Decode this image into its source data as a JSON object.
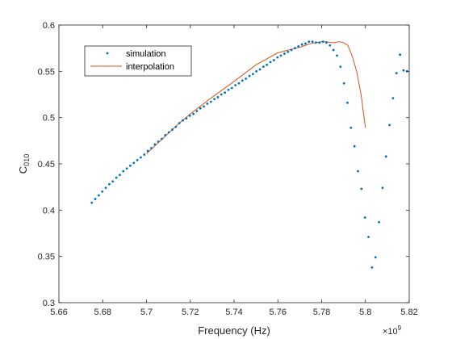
{
  "chart_data": {
    "type": "scatter",
    "xlabel": "Frequency (Hz)",
    "ylabel": "C010",
    "ylabel_main": "C",
    "ylabel_sub": "010",
    "x_exponent_label": "×10",
    "x_exponent_power": "9",
    "xlim": [
      5.66,
      5.82
    ],
    "ylim": [
      0.3,
      0.6
    ],
    "xticks": [
      5.66,
      5.68,
      5.7,
      5.72,
      5.74,
      5.76,
      5.78,
      5.8,
      5.82
    ],
    "xtick_labels": [
      "5.66",
      "5.68",
      "5.7",
      "5.72",
      "5.74",
      "5.76",
      "5.78",
      "5.8",
      "5.82"
    ],
    "yticks": [
      0.3,
      0.35,
      0.4,
      0.45,
      0.5,
      0.55,
      0.6
    ],
    "ytick_labels": [
      "0.3",
      "0.35",
      "0.4",
      "0.45",
      "0.5",
      "0.55",
      "0.6"
    ],
    "grid": false,
    "legend_position": "top-left",
    "legend": [
      {
        "label": "simulation",
        "style": "marker",
        "color": "#0072BD"
      },
      {
        "label": "interpolation",
        "style": "line",
        "color": "#D95319"
      }
    ],
    "series": [
      {
        "name": "simulation",
        "color": "#0072BD",
        "x": [
          5.675,
          5.6766,
          5.6782,
          5.6798,
          5.6814,
          5.683,
          5.6846,
          5.6862,
          5.6878,
          5.6894,
          5.691,
          5.6926,
          5.6942,
          5.6958,
          5.6974,
          5.699,
          5.7006,
          5.7022,
          5.7038,
          5.7054,
          5.707,
          5.7086,
          5.7102,
          5.7118,
          5.7134,
          5.715,
          5.7166,
          5.7182,
          5.7198,
          5.7214,
          5.723,
          5.7246,
          5.7262,
          5.7278,
          5.7294,
          5.731,
          5.7326,
          5.7342,
          5.7358,
          5.7374,
          5.739,
          5.7406,
          5.7422,
          5.7438,
          5.7454,
          5.747,
          5.7486,
          5.7502,
          5.7518,
          5.7534,
          5.755,
          5.7566,
          5.7582,
          5.7598,
          5.7614,
          5.763,
          5.7646,
          5.7662,
          5.7678,
          5.7694,
          5.771,
          5.7726,
          5.7742,
          5.7758,
          5.7774,
          5.779,
          5.7806,
          5.7822,
          5.7838,
          5.7854,
          5.787,
          5.7886,
          5.7902,
          5.7918,
          5.7934,
          5.795,
          5.7966,
          5.7982,
          5.7998,
          5.8014,
          5.803,
          5.8046,
          5.8062,
          5.8078,
          5.8094,
          5.811,
          5.8126,
          5.8142,
          5.8158,
          5.8174,
          5.819,
          5.8206,
          5.8222
        ],
        "y": [
          0.408,
          0.412,
          0.416,
          0.42,
          0.424,
          0.428,
          0.431,
          0.435,
          0.438,
          0.442,
          0.445,
          0.448,
          0.451,
          0.454,
          0.457,
          0.46,
          0.464,
          0.467,
          0.471,
          0.474,
          0.477,
          0.481,
          0.484,
          0.487,
          0.49,
          0.494,
          0.497,
          0.499,
          0.502,
          0.504,
          0.507,
          0.51,
          0.512,
          0.515,
          0.517,
          0.52,
          0.522,
          0.525,
          0.527,
          0.53,
          0.532,
          0.535,
          0.537,
          0.54,
          0.542,
          0.545,
          0.547,
          0.55,
          0.552,
          0.555,
          0.557,
          0.56,
          0.562,
          0.565,
          0.567,
          0.569,
          0.571,
          0.573,
          0.575,
          0.577,
          0.579,
          0.58,
          0.582,
          0.582,
          0.581,
          0.581,
          0.582,
          0.581,
          0.578,
          0.573,
          0.567,
          0.555,
          0.537,
          0.516,
          0.489,
          0.469,
          0.442,
          0.423,
          0.392,
          0.371,
          0.338,
          0.349,
          0.387,
          0.424,
          0.458,
          0.492,
          0.521,
          0.548,
          0.568,
          0.551,
          0.55,
          0.55,
          0.55
        ]
      },
      {
        "name": "interpolation",
        "color": "#D95319",
        "x": [
          5.7,
          5.705,
          5.71,
          5.715,
          5.716,
          5.72,
          5.73,
          5.74,
          5.75,
          5.76,
          5.77,
          5.775,
          5.78,
          5.782,
          5.784,
          5.786,
          5.788,
          5.79,
          5.792,
          5.794,
          5.796,
          5.798,
          5.8
        ],
        "y": [
          0.461,
          0.472,
          0.483,
          0.494,
          0.496,
          0.504,
          0.522,
          0.539,
          0.557,
          0.57,
          0.576,
          0.58,
          0.582,
          0.582,
          0.581,
          0.581,
          0.582,
          0.581,
          0.578,
          0.566,
          0.55,
          0.525,
          0.489
        ]
      }
    ]
  }
}
